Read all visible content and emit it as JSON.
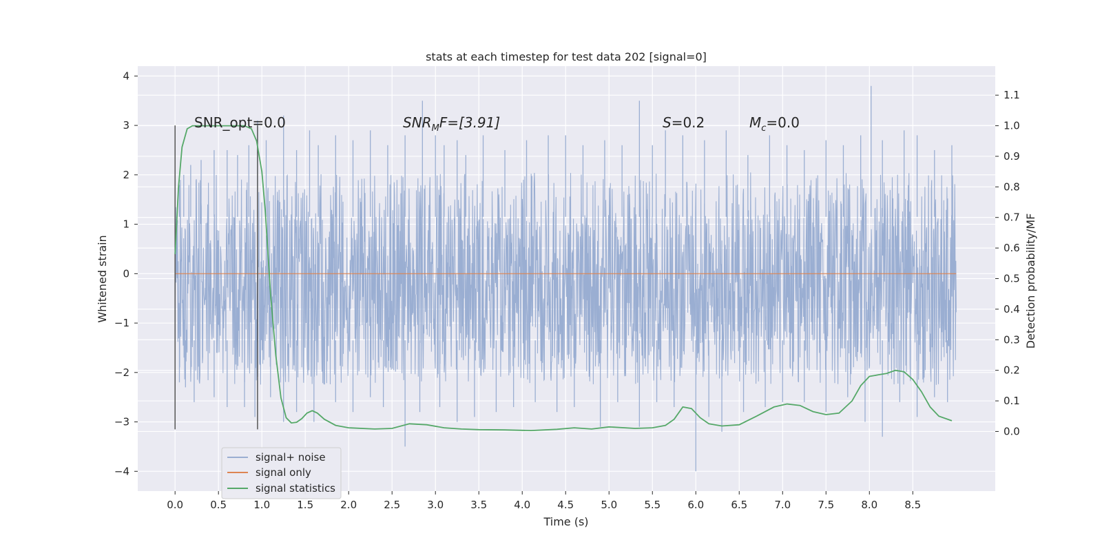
{
  "colors": {
    "background": "#eaeaf2",
    "grid": "#ffffff",
    "noise": "#9aaed2",
    "signal": "#dd8452",
    "statistics": "#55a868",
    "markers": "#555555"
  },
  "chart_data": {
    "type": "line",
    "title": "stats at each timestep for test data 202 [signal=0]",
    "xlabel": "Time (s)",
    "ylabel": "Whitened strain",
    "ylabel_right": "Detection probability/MF",
    "xlim": [
      -0.43,
      9.45
    ],
    "ylim": [
      -4.4,
      4.2
    ],
    "ylim_right": [
      -0.195,
      1.195
    ],
    "x_ticks": [
      "0.0",
      "0.5",
      "1.0",
      "1.5",
      "2.0",
      "2.5",
      "3.0",
      "3.5",
      "4.0",
      "4.5",
      "5.0",
      "5.5",
      "6.0",
      "6.5",
      "7.0",
      "7.5",
      "8.0",
      "8.5"
    ],
    "y_ticks": [
      "4",
      "3",
      "2",
      "1",
      "0",
      "−1",
      "−2",
      "−3",
      "−4"
    ],
    "y_ticks_right": [
      "1.1",
      "1.0",
      "0.9",
      "0.8",
      "0.7",
      "0.6",
      "0.5",
      "0.4",
      "0.3",
      "0.2",
      "0.1",
      "0.0"
    ],
    "grid": true,
    "legend": {
      "placement": "lower-left",
      "entries": [
        "signal+ noise",
        "signal only",
        "signal statistics"
      ]
    },
    "annotations": {
      "snr_opt": "SNR_opt=0.0",
      "snr_mf_base": "SNR",
      "snr_mf_sub": "M",
      "snr_mf_rest": "F=[3.91]",
      "s_italic": "S",
      "s_value": "=0.2",
      "mc_base": "M",
      "mc_sub": "c",
      "mc_value": "=0.0"
    },
    "series": [
      {
        "name": "signal+ noise",
        "axis": "left",
        "x_range": [
          0.0,
          9.0
        ],
        "band": [
          -1.35,
          1.15
        ],
        "peaks_up": [
          [
            0.05,
            1.8
          ],
          [
            0.1,
            2.0
          ],
          [
            0.18,
            2.2
          ],
          [
            0.3,
            2.3
          ],
          [
            0.45,
            2.5
          ],
          [
            0.6,
            2.5
          ],
          [
            0.72,
            2.4
          ],
          [
            0.85,
            2.6
          ],
          [
            0.95,
            3.1
          ],
          [
            1.05,
            2.7
          ],
          [
            1.25,
            3.2
          ],
          [
            1.4,
            2.5
          ],
          [
            1.55,
            2.9
          ],
          [
            1.65,
            2.6
          ],
          [
            1.85,
            2.8
          ],
          [
            2.05,
            2.7
          ],
          [
            2.25,
            2.9
          ],
          [
            2.45,
            2.6
          ],
          [
            2.65,
            2.8
          ],
          [
            2.85,
            3.5
          ],
          [
            3.0,
            2.8
          ],
          [
            3.1,
            2.6
          ],
          [
            3.25,
            2.7
          ],
          [
            3.35,
            2.4
          ],
          [
            3.55,
            2.8
          ],
          [
            3.8,
            2.5
          ],
          [
            4.05,
            2.7
          ],
          [
            4.3,
            2.8
          ],
          [
            4.5,
            2.8
          ],
          [
            4.7,
            2.6
          ],
          [
            4.95,
            2.7
          ],
          [
            5.15,
            2.6
          ],
          [
            5.35,
            3.5
          ],
          [
            5.5,
            2.6
          ],
          [
            5.65,
            2.9
          ],
          [
            5.85,
            2.8
          ],
          [
            6.1,
            2.7
          ],
          [
            6.35,
            2.9
          ],
          [
            6.6,
            2.4
          ],
          [
            6.85,
            2.8
          ],
          [
            7.05,
            2.6
          ],
          [
            7.25,
            2.5
          ],
          [
            7.5,
            2.7
          ],
          [
            7.7,
            2.6
          ],
          [
            7.9,
            2.8
          ],
          [
            8.02,
            3.8
          ],
          [
            8.15,
            2.7
          ],
          [
            8.4,
            2.9
          ],
          [
            8.55,
            2.8
          ],
          [
            8.75,
            2.5
          ],
          [
            8.95,
            2.6
          ]
        ],
        "peaks_down": [
          [
            0.05,
            -2.2
          ],
          [
            0.12,
            -2.3
          ],
          [
            0.22,
            -2.6
          ],
          [
            0.45,
            -2.5
          ],
          [
            0.6,
            -2.7
          ],
          [
            0.8,
            -2.7
          ],
          [
            0.92,
            -2.9
          ],
          [
            1.1,
            -2.5
          ],
          [
            1.25,
            -3.0
          ],
          [
            1.4,
            -2.8
          ],
          [
            1.6,
            -3.0
          ],
          [
            1.85,
            -2.6
          ],
          [
            2.05,
            -2.8
          ],
          [
            2.25,
            -2.5
          ],
          [
            2.4,
            -2.7
          ],
          [
            2.65,
            -3.5
          ],
          [
            2.82,
            -2.8
          ],
          [
            3.05,
            -2.7
          ],
          [
            3.25,
            -3.0
          ],
          [
            3.45,
            -2.9
          ],
          [
            3.7,
            -2.8
          ],
          [
            3.9,
            -2.7
          ],
          [
            4.15,
            -2.6
          ],
          [
            4.4,
            -2.8
          ],
          [
            4.6,
            -2.7
          ],
          [
            4.9,
            -3.1
          ],
          [
            5.1,
            -2.6
          ],
          [
            5.35,
            -3.1
          ],
          [
            5.55,
            -2.6
          ],
          [
            5.75,
            -2.7
          ],
          [
            6.0,
            -4.0
          ],
          [
            6.15,
            -2.9
          ],
          [
            6.3,
            -3.2
          ],
          [
            6.55,
            -2.8
          ],
          [
            6.8,
            -2.7
          ],
          [
            7.0,
            -2.6
          ],
          [
            7.25,
            -2.6
          ],
          [
            7.5,
            -2.8
          ],
          [
            7.75,
            -2.5
          ],
          [
            7.95,
            -3.0
          ],
          [
            8.15,
            -3.3
          ],
          [
            8.35,
            -2.6
          ],
          [
            8.55,
            -2.9
          ],
          [
            8.75,
            -2.5
          ],
          [
            8.9,
            -2.6
          ]
        ]
      },
      {
        "name": "signal only",
        "axis": "left",
        "x": [
          0.0,
          9.0
        ],
        "y": [
          0.0,
          0.0
        ]
      },
      {
        "name": "signal statistics",
        "axis": "right",
        "x": [
          0.0,
          0.04,
          0.08,
          0.14,
          0.2,
          0.3,
          0.5,
          0.7,
          0.8,
          0.88,
          0.94,
          1.0,
          1.04,
          1.1,
          1.16,
          1.22,
          1.28,
          1.34,
          1.4,
          1.46,
          1.52,
          1.58,
          1.64,
          1.72,
          1.85,
          2.0,
          2.3,
          2.5,
          2.7,
          2.9,
          3.1,
          3.3,
          3.5,
          3.8,
          4.1,
          4.4,
          4.6,
          4.8,
          5.0,
          5.3,
          5.5,
          5.65,
          5.75,
          5.85,
          5.95,
          6.05,
          6.15,
          6.3,
          6.5,
          6.7,
          6.9,
          7.05,
          7.2,
          7.35,
          7.5,
          7.65,
          7.8,
          7.9,
          8.0,
          8.1,
          8.2,
          8.3,
          8.4,
          8.5,
          8.6,
          8.7,
          8.8,
          8.95
        ],
        "y": [
          0.58,
          0.8,
          0.93,
          0.99,
          1.0,
          1.0,
          1.0,
          1.0,
          1.0,
          0.99,
          0.95,
          0.85,
          0.72,
          0.45,
          0.25,
          0.11,
          0.045,
          0.028,
          0.03,
          0.042,
          0.06,
          0.068,
          0.06,
          0.04,
          0.02,
          0.012,
          0.008,
          0.01,
          0.025,
          0.022,
          0.012,
          0.008,
          0.006,
          0.005,
          0.003,
          0.007,
          0.012,
          0.008,
          0.015,
          0.01,
          0.012,
          0.02,
          0.04,
          0.08,
          0.075,
          0.045,
          0.025,
          0.018,
          0.022,
          0.05,
          0.08,
          0.09,
          0.085,
          0.065,
          0.055,
          0.06,
          0.1,
          0.15,
          0.18,
          0.185,
          0.19,
          0.2,
          0.195,
          0.17,
          0.13,
          0.08,
          0.05,
          0.035
        ]
      }
    ],
    "markers": [
      {
        "x": 0.0,
        "y": [
          -3.15,
          3.0
        ]
      },
      {
        "x": 0.95,
        "y": [
          -3.15,
          3.0
        ]
      }
    ]
  }
}
